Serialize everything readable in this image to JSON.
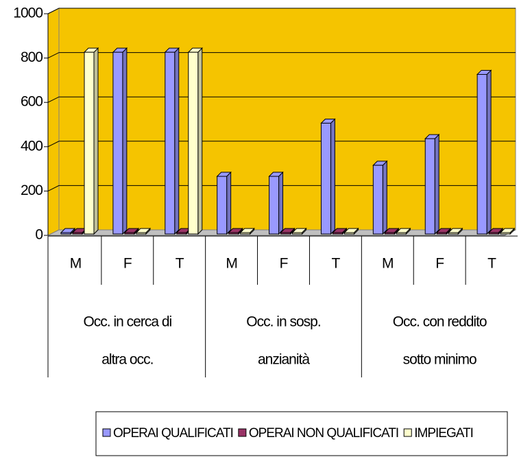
{
  "chart_data": {
    "type": "bar3d",
    "categories": [
      "M",
      "F",
      "T",
      "M",
      "F",
      "T",
      "M",
      "F",
      "T"
    ],
    "groups": [
      [
        "Occ. in cerca di",
        "altra occ."
      ],
      [
        "Occ. in sosp.",
        "anzianità"
      ],
      [
        "Occ. con reddito",
        "sotto minimo"
      ]
    ],
    "series": [
      {
        "name": "OPERAI QUALIFICATI",
        "color": "#9999ff",
        "values": [
          0,
          820,
          820,
          260,
          260,
          500,
          310,
          430,
          720
        ]
      },
      {
        "name": "OPERAI NON QUALIFICATI",
        "color": "#993366",
        "values": [
          0,
          0,
          0,
          0,
          0,
          0,
          0,
          0,
          0
        ]
      },
      {
        "name": "IMPIEGATI",
        "color": "#ffffcc",
        "values": [
          820,
          0,
          820,
          0,
          0,
          0,
          0,
          0,
          0
        ]
      }
    ],
    "ylim": [
      0,
      1000
    ],
    "yticks": [
      0,
      200,
      400,
      600,
      800,
      1000
    ],
    "grid": true,
    "plot_color": "#f5c400",
    "legend": "bottom"
  }
}
